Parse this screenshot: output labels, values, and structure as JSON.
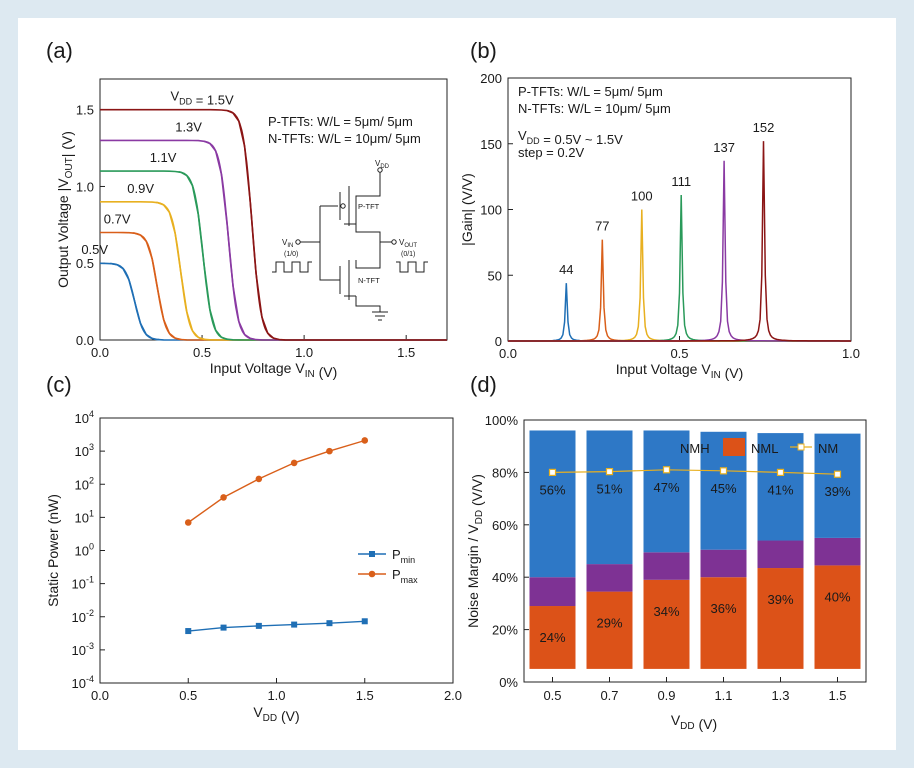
{
  "colors": {
    "blue": "#1f6fb5",
    "orange": "#d95f1a",
    "yellow": "#e8b020",
    "green": "#2a9a5a",
    "purple": "#8a3aa3",
    "darkred": "#8b1515",
    "nm_line": "#e8b020",
    "background": "#dde9f1"
  },
  "labels": {
    "a": "(a)",
    "b": "(b)",
    "c": "(c)",
    "d": "(d)"
  },
  "chart_data": [
    {
      "id": "a",
      "type": "line",
      "xlabel": "Input Voltage V_IN (V)",
      "ylabel": "Output Voltage |V_OUT| (V)",
      "xlim": [
        0,
        1.7
      ],
      "ylim": [
        0,
        1.7
      ],
      "xticks": [
        0,
        0.5,
        1.0,
        1.5
      ],
      "xtick_labels": [
        "0.0",
        "0.5",
        "1.0",
        "1.5"
      ],
      "yticks": [
        0,
        0.5,
        1.0,
        1.5
      ],
      "ytick_labels": [
        "0.0",
        "0.5",
        "1.0",
        "1.5"
      ],
      "grid": false,
      "series": [
        {
          "name": "0.5V",
          "vdd": 0.5,
          "switch_x": 0.17,
          "color": "blue"
        },
        {
          "name": "0.7V",
          "vdd": 0.7,
          "switch_x": 0.28,
          "color": "orange"
        },
        {
          "name": "0.9V",
          "vdd": 0.9,
          "switch_x": 0.395,
          "color": "yellow"
        },
        {
          "name": "1.1V",
          "vdd": 1.1,
          "switch_x": 0.505,
          "color": "green"
        },
        {
          "name": "1.3V",
          "vdd": 1.3,
          "switch_x": 0.63,
          "color": "purple"
        },
        {
          "name": "V_DD = 1.5V",
          "vdd": 1.5,
          "switch_x": 0.745,
          "color": "darkred"
        }
      ],
      "annotations": [
        "P-TFTs: W/L = 5μm/ 5μm",
        "N-TFTs: W/L = 10μm/ 5μm"
      ],
      "schematic": {
        "vdd": "V_DD",
        "vin": "V_IN",
        "vin_state": "(1/0)",
        "vout": "V_OUT",
        "vout_state": "(0/1)",
        "ptft": "P-TFT",
        "ntft": "N-TFT"
      }
    },
    {
      "id": "b",
      "type": "line",
      "xlabel": "Input Voltage V_IN (V)",
      "ylabel": "|Gain| (V/V)",
      "xlim": [
        0,
        1.0
      ],
      "ylim": [
        0,
        200
      ],
      "xticks": [
        0,
        0.5,
        1.0
      ],
      "xtick_labels": [
        "0.0",
        "0.5",
        "1.0"
      ],
      "yticks": [
        0,
        50,
        100,
        150,
        200
      ],
      "ytick_labels": [
        "0",
        "50",
        "100",
        "150",
        "200"
      ],
      "grid": false,
      "series": [
        {
          "peak_x": 0.17,
          "peak": 44,
          "label": "44",
          "color": "blue"
        },
        {
          "peak_x": 0.275,
          "peak": 77,
          "label": "77",
          "color": "orange"
        },
        {
          "peak_x": 0.39,
          "peak": 100,
          "label": "100",
          "color": "yellow"
        },
        {
          "peak_x": 0.505,
          "peak": 111,
          "label": "111",
          "color": "green"
        },
        {
          "peak_x": 0.63,
          "peak": 137,
          "label": "137",
          "color": "purple"
        },
        {
          "peak_x": 0.745,
          "peak": 152,
          "label": "152",
          "color": "darkred"
        }
      ],
      "annotations": [
        "P-TFTs: W/L = 5μm/ 5μm",
        "N-TFTs: W/L = 10μm/ 5μm",
        "V_DD = 0.5V ~ 1.5V",
        "step = 0.2V"
      ]
    },
    {
      "id": "c",
      "type": "scatter",
      "scale": "log-y",
      "xlabel": "V_DD (V)",
      "ylabel": "Static Power (nW)",
      "xlim": [
        0,
        2.0
      ],
      "ylim_exp": [
        -4,
        4
      ],
      "xticks": [
        0,
        0.5,
        1.0,
        1.5,
        2.0
      ],
      "xtick_labels": [
        "0.0",
        "0.5",
        "1.0",
        "1.5",
        "2.0"
      ],
      "ytick_exps": [
        "4",
        "3",
        "2",
        "1",
        "0",
        "-1",
        "-2",
        "-3",
        "-4"
      ],
      "legend_position": "right",
      "x": [
        0.5,
        0.7,
        0.9,
        1.1,
        1.3,
        1.5
      ],
      "series": [
        {
          "name": "P_min",
          "marker": "square",
          "color": "blue",
          "values": [
            0.0037,
            0.0047,
            0.0053,
            0.0058,
            0.0064,
            0.0073
          ]
        },
        {
          "name": "P_max",
          "marker": "circle",
          "color": "orange",
          "values": [
            7,
            40,
            145,
            440,
            1000,
            2100
          ]
        }
      ]
    },
    {
      "id": "d",
      "type": "bar",
      "stacked": true,
      "xlabel": "V_DD (V)",
      "ylabel": "Noise Margin / V_DD (V/V)",
      "ylim": [
        0,
        1.0
      ],
      "ytick_labels": [
        "0%",
        "20%",
        "40%",
        "60%",
        "80%",
        "100%"
      ],
      "categories": [
        "0.5",
        "0.7",
        "0.9",
        "1.1",
        "1.3",
        "1.5"
      ],
      "legend_position": "top",
      "legend": [
        "NMH",
        "NML",
        "NM"
      ],
      "base": [
        0.05,
        0.05,
        0.05,
        0.05,
        0.05,
        0.05
      ],
      "nml_top": [
        0.29,
        0.345,
        0.39,
        0.4,
        0.435,
        0.445
      ],
      "transition_top": [
        0.4,
        0.45,
        0.495,
        0.505,
        0.54,
        0.55
      ],
      "total_top": [
        0.96,
        0.96,
        0.96,
        0.955,
        0.95,
        0.948
      ],
      "nm": [
        0.8,
        0.803,
        0.81,
        0.806,
        0.8,
        0.793
      ],
      "nmh_labels": [
        "56%",
        "51%",
        "47%",
        "45%",
        "41%",
        "39%"
      ],
      "nml_labels": [
        "24%",
        "29%",
        "34%",
        "36%",
        "39%",
        "40%"
      ],
      "nmh_color": "#2e78c6",
      "nml_color": "#dc5218",
      "transition_color": "#7e3294"
    }
  ]
}
